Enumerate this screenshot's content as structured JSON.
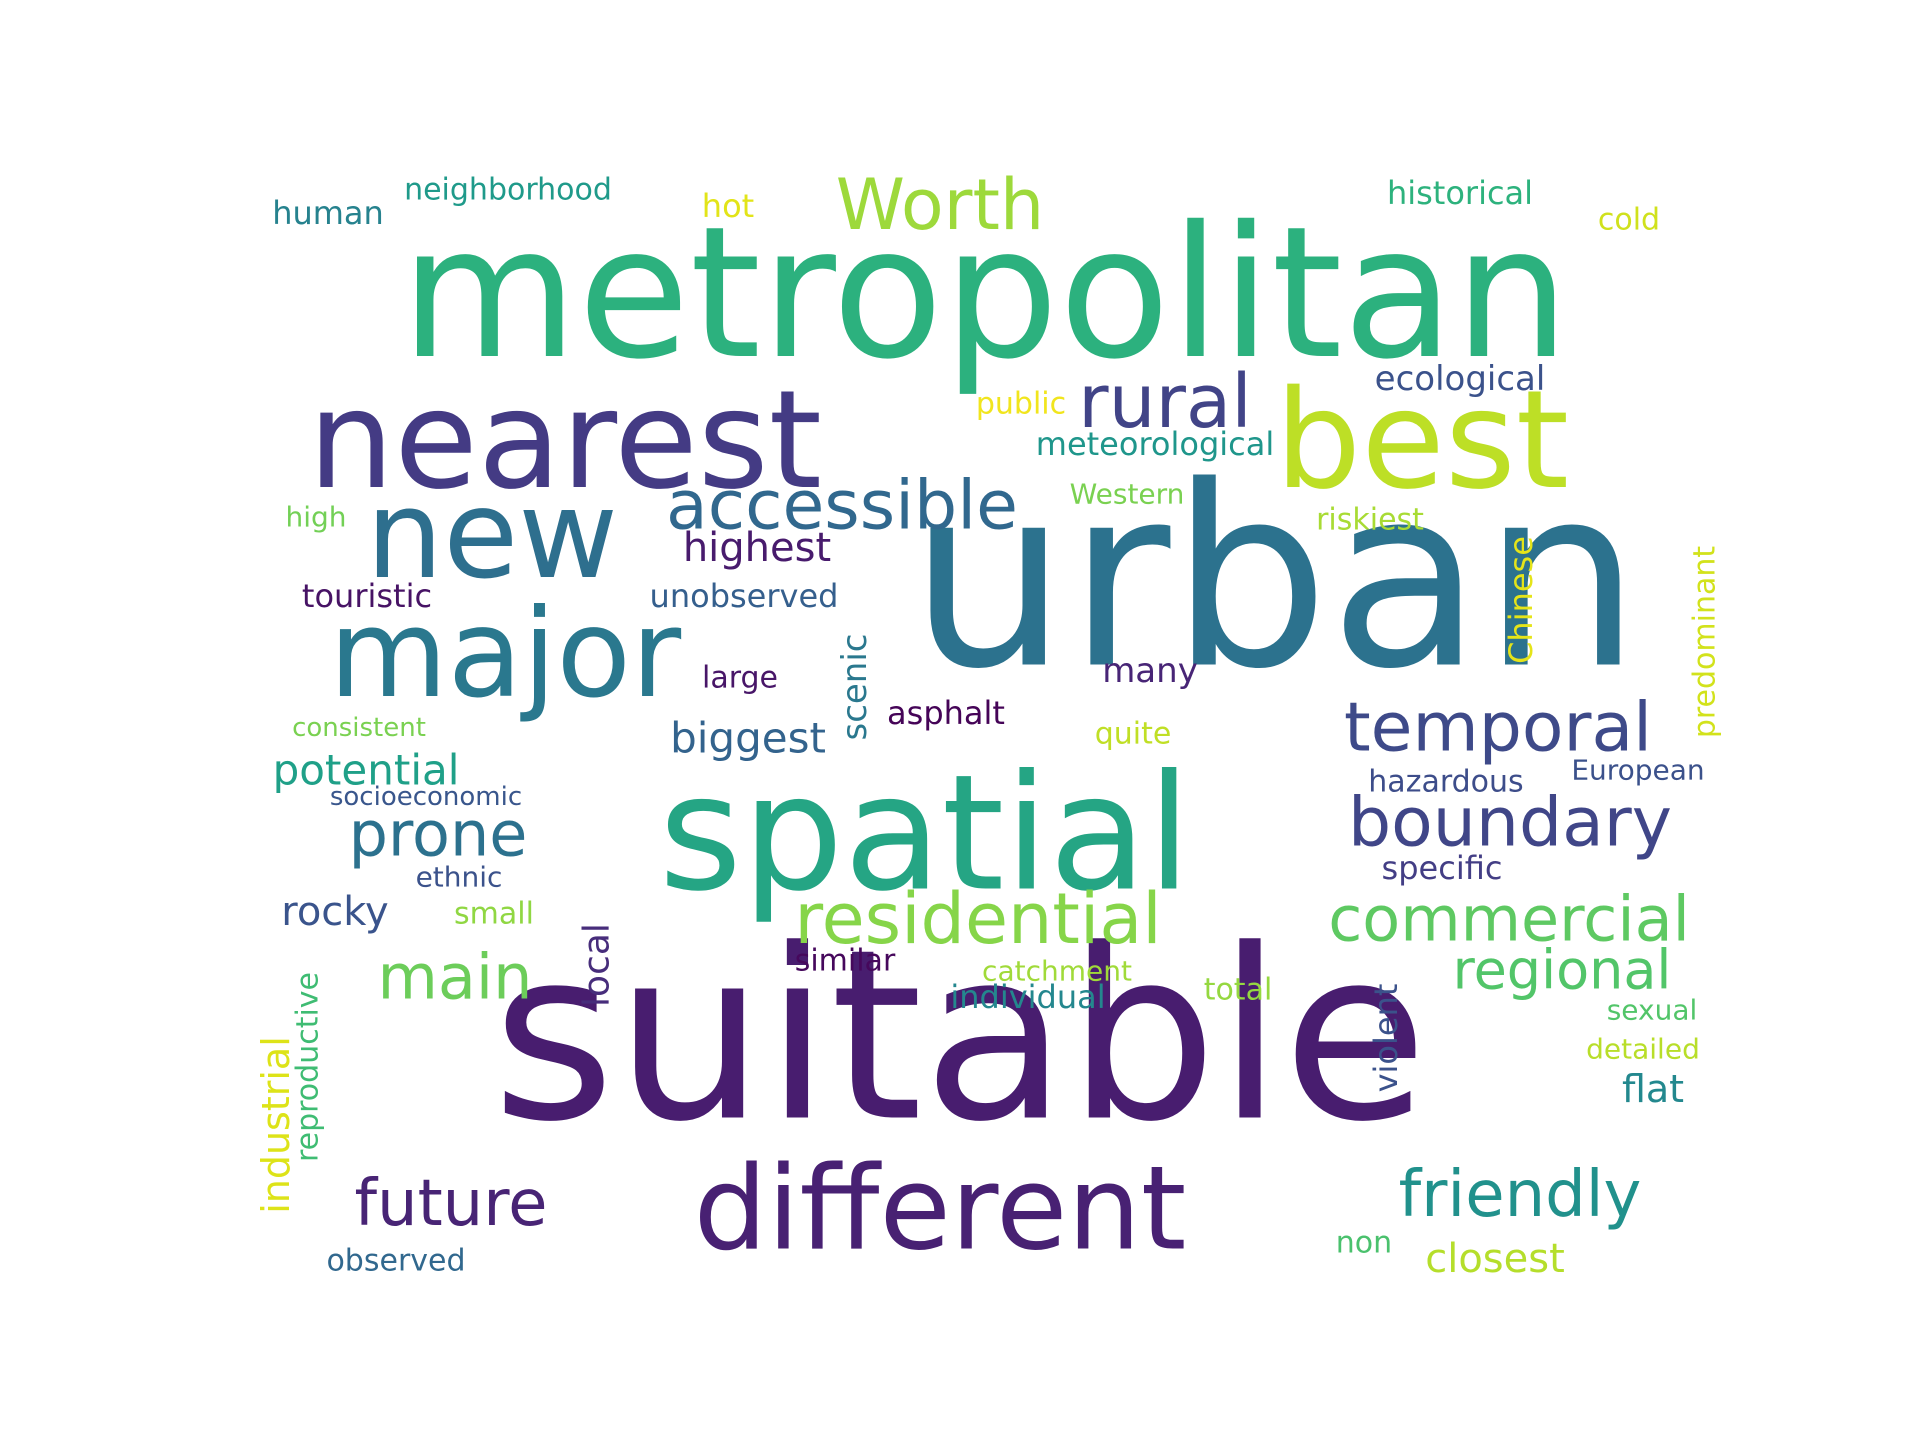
{
  "words": [
    {
      "text": "metropolitan",
      "color": "#2cb17e",
      "vertical": false
    },
    {
      "text": "urban",
      "color": "#2c728e",
      "vertical": false
    },
    {
      "text": "suitable",
      "color": "#481d6f",
      "vertical": false
    },
    {
      "text": "spatial",
      "color": "#25a584",
      "vertical": false
    },
    {
      "text": "nearest",
      "color": "#443b84",
      "vertical": false
    },
    {
      "text": "best",
      "color": "#bddf26",
      "vertical": false
    },
    {
      "text": "new",
      "color": "#2e6f8e",
      "vertical": false
    },
    {
      "text": "major",
      "color": "#2a788e",
      "vertical": false
    },
    {
      "text": "different",
      "color": "#482173",
      "vertical": false
    },
    {
      "text": "Worth",
      "color": "#9dd93b",
      "vertical": false
    },
    {
      "text": "rural",
      "color": "#414487",
      "vertical": false
    },
    {
      "text": "accessible",
      "color": "#31688e",
      "vertical": false
    },
    {
      "text": "residential",
      "color": "#86d549",
      "vertical": false
    },
    {
      "text": "commercial",
      "color": "#5ec962",
      "vertical": false
    },
    {
      "text": "temporal",
      "color": "#3e4a89",
      "vertical": false
    },
    {
      "text": "boundary",
      "color": "#404688",
      "vertical": false
    },
    {
      "text": "friendly",
      "color": "#21918c",
      "vertical": false
    },
    {
      "text": "future",
      "color": "#482475",
      "vertical": false
    },
    {
      "text": "main",
      "color": "#6ccd5a",
      "vertical": false
    },
    {
      "text": "regional",
      "color": "#52c569",
      "vertical": false
    },
    {
      "text": "prone",
      "color": "#2c718e",
      "vertical": false
    },
    {
      "text": "highest",
      "color": "#481b6d",
      "vertical": false
    },
    {
      "text": "biggest",
      "color": "#33638d",
      "vertical": false
    },
    {
      "text": "potential",
      "color": "#1fa088",
      "vertical": false
    },
    {
      "text": "rocky",
      "color": "#3a548c",
      "vertical": false
    },
    {
      "text": "flat",
      "color": "#23888e",
      "vertical": false
    },
    {
      "text": "closest",
      "color": "#b5de2b",
      "vertical": false
    },
    {
      "text": "local",
      "color": "#472d7b",
      "vertical": true
    },
    {
      "text": "industrial",
      "color": "#dde318",
      "vertical": true
    },
    {
      "text": "reproductive",
      "color": "#3fbc73",
      "vertical": true
    },
    {
      "text": "scenic",
      "color": "#2a788e",
      "vertical": true
    },
    {
      "text": "Chinese",
      "color": "#e5e419",
      "vertical": true
    },
    {
      "text": "predominant",
      "color": "#d2e21b",
      "vertical": true
    },
    {
      "text": "violent",
      "color": "#3b528b",
      "vertical": true
    },
    {
      "text": "neighborhood",
      "color": "#1f9a8a",
      "vertical": false
    },
    {
      "text": "human",
      "color": "#26828e",
      "vertical": false
    },
    {
      "text": "hot",
      "color": "#e2e418",
      "vertical": false
    },
    {
      "text": "historical",
      "color": "#2db27d",
      "vertical": false
    },
    {
      "text": "cold",
      "color": "#d0e11c",
      "vertical": false
    },
    {
      "text": "ecological",
      "color": "#3b528b",
      "vertical": false
    },
    {
      "text": "public",
      "color": "#f1e51d",
      "vertical": false
    },
    {
      "text": "meteorological",
      "color": "#1f968b",
      "vertical": false
    },
    {
      "text": "Western",
      "color": "#7ad151",
      "vertical": false
    },
    {
      "text": "riskiest",
      "color": "#a8db34",
      "vertical": false
    },
    {
      "text": "high",
      "color": "#73d056",
      "vertical": false
    },
    {
      "text": "touristic",
      "color": "#471365",
      "vertical": false
    },
    {
      "text": "unobserved",
      "color": "#355f8d",
      "vertical": false
    },
    {
      "text": "many",
      "color": "#482576",
      "vertical": false
    },
    {
      "text": "large",
      "color": "#481668",
      "vertical": false
    },
    {
      "text": "asphalt",
      "color": "#450457",
      "vertical": false
    },
    {
      "text": "consistent",
      "color": "#7ad151",
      "vertical": false
    },
    {
      "text": "quite",
      "color": "#c0df25",
      "vertical": false
    },
    {
      "text": "socioeconomic",
      "color": "#39568c",
      "vertical": false
    },
    {
      "text": "hazardous",
      "color": "#3d4d8a",
      "vertical": false
    },
    {
      "text": "European",
      "color": "#3b518b",
      "vertical": false
    },
    {
      "text": "ethnic",
      "color": "#3b528b",
      "vertical": false
    },
    {
      "text": "specific",
      "color": "#433e85",
      "vertical": false
    },
    {
      "text": "small",
      "color": "#90d743",
      "vertical": false
    },
    {
      "text": "similar",
      "color": "#46085c",
      "vertical": false
    },
    {
      "text": "catchment",
      "color": "#a0da39",
      "vertical": false
    },
    {
      "text": "individual",
      "color": "#24878e",
      "vertical": false
    },
    {
      "text": "total",
      "color": "#95d840",
      "vertical": false
    },
    {
      "text": "sexual",
      "color": "#52c569",
      "vertical": false
    },
    {
      "text": "detailed",
      "color": "#b8de29",
      "vertical": false
    },
    {
      "text": "non",
      "color": "#4ac16d",
      "vertical": false
    },
    {
      "text": "observed",
      "color": "#31688e",
      "vertical": false
    }
  ]
}
